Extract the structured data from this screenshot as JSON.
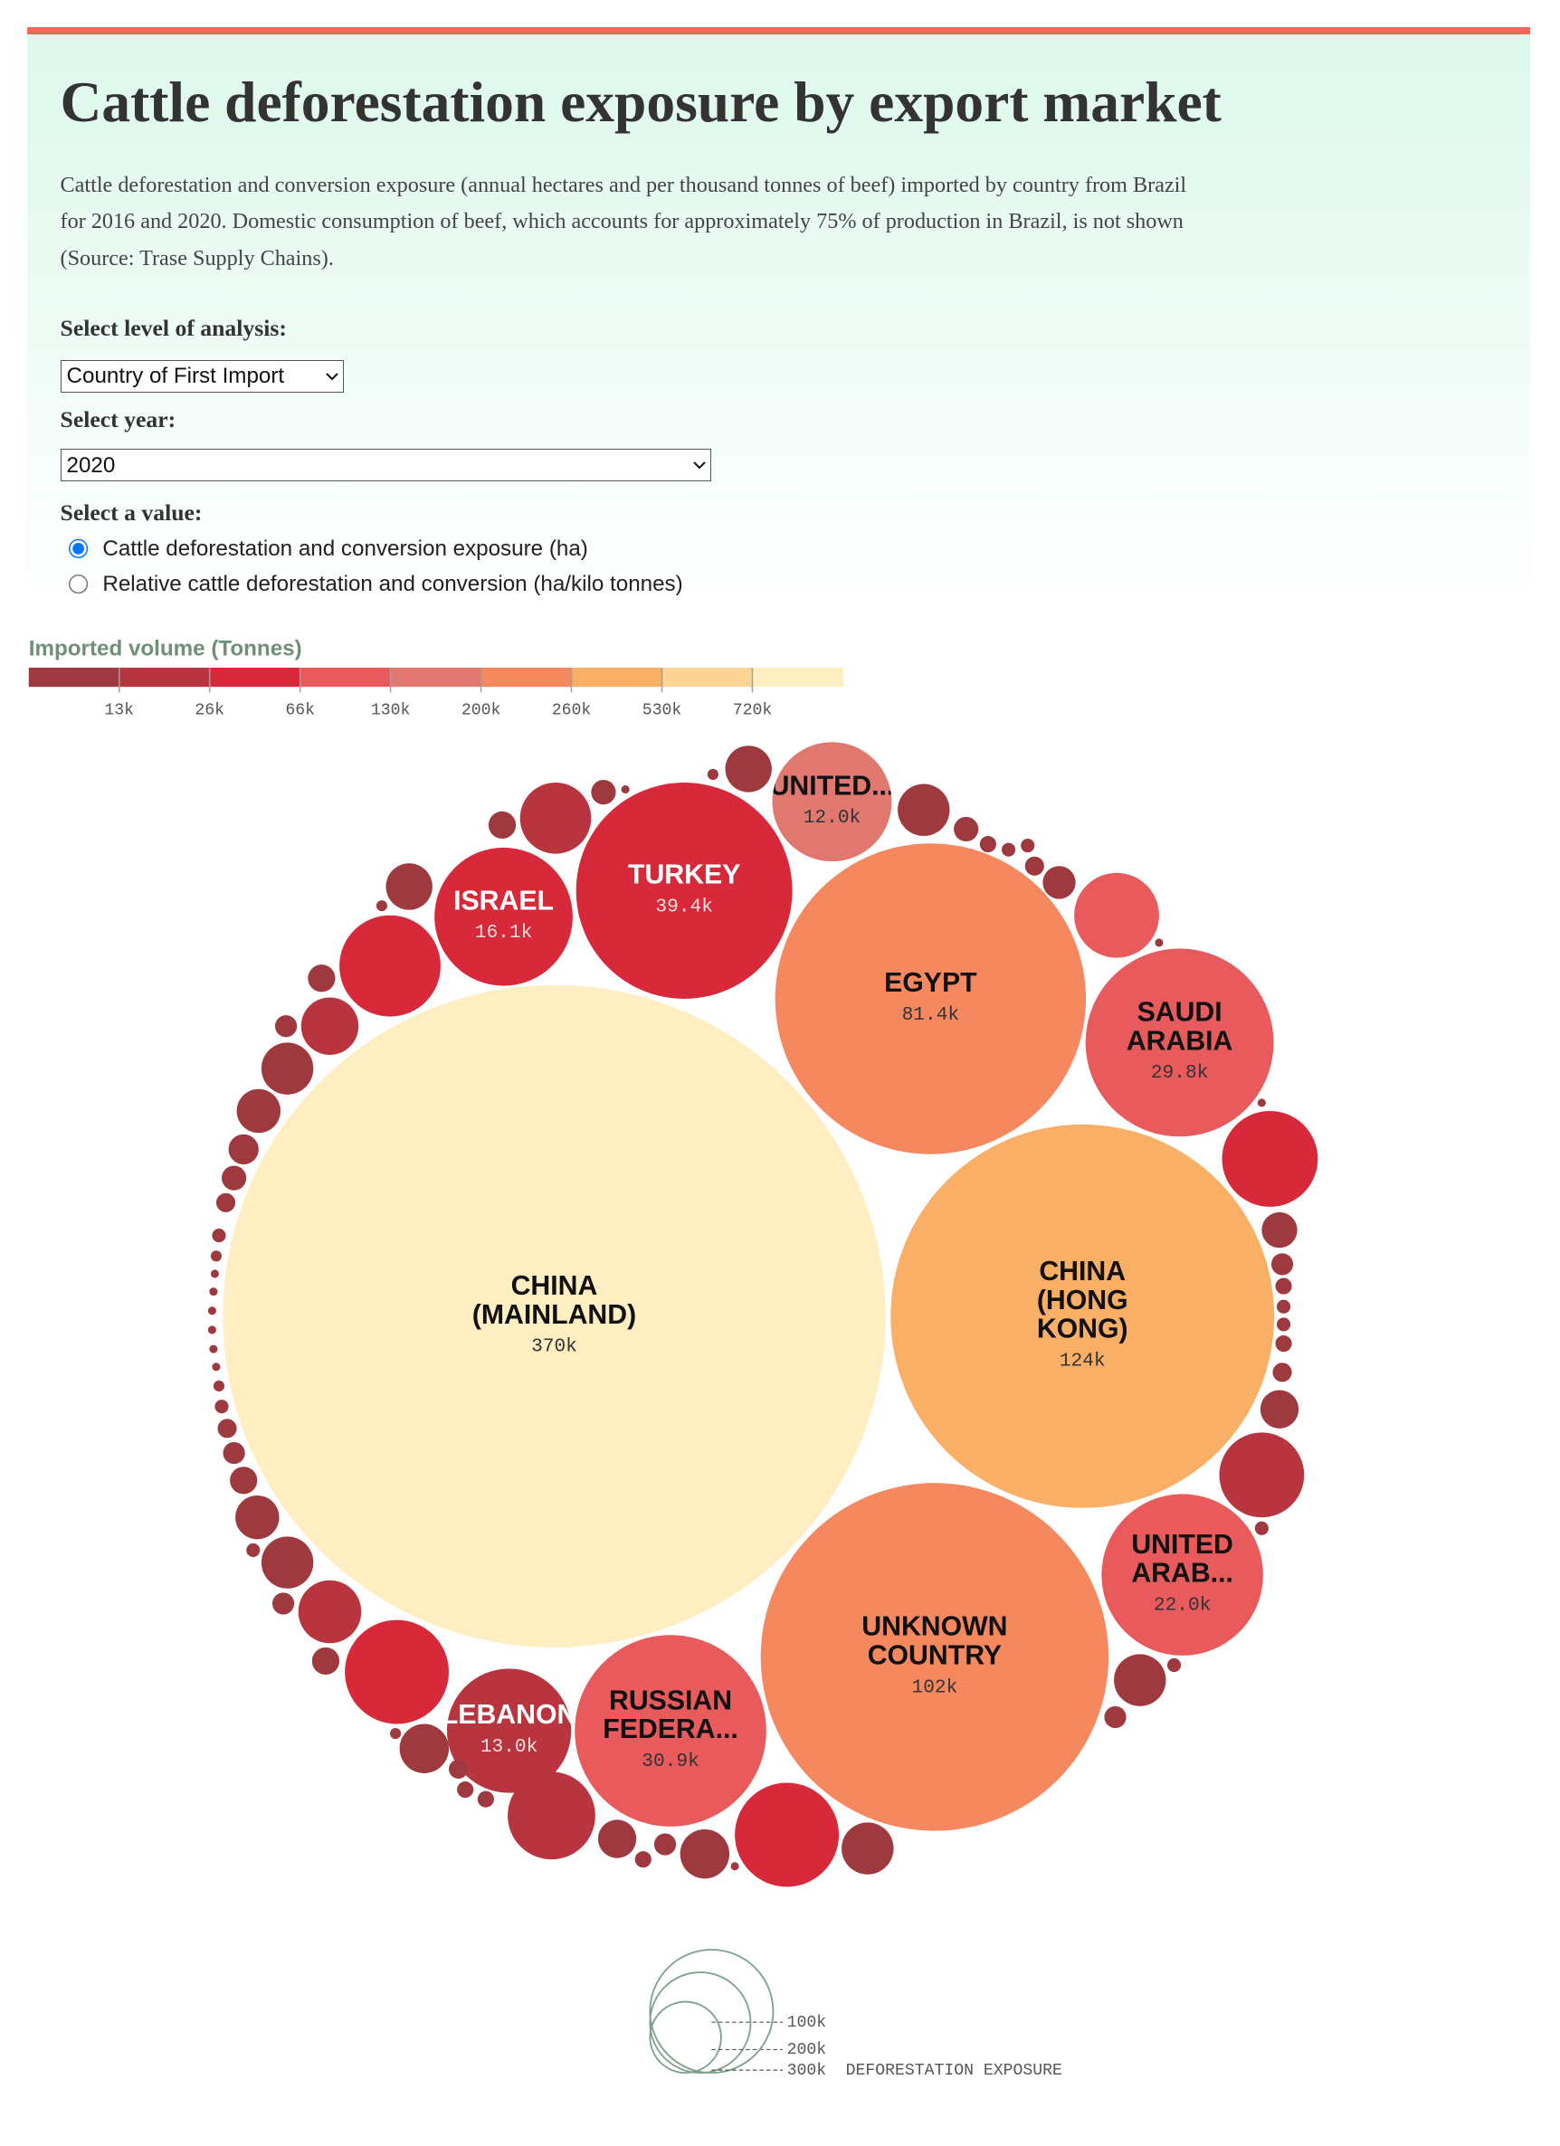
{
  "header": {
    "title": "Cattle deforestation exposure by export market",
    "description": "Cattle deforestation and conversion exposure (annual hectares and per thousand tonnes of beef) imported by country from Brazil for 2016 and 2020. Domestic consumption of beef, which accounts for approximately 75% of production in Brazil, is not shown (Source: Trase Supply Chains)."
  },
  "controls": {
    "level_label": "Select level of analysis:",
    "level_value": "Country of First Import",
    "year_label": "Select year:",
    "year_value": "2020",
    "value_label": "Select a value:",
    "value_options": [
      "Cattle deforestation and conversion exposure (ha)",
      "Relative cattle deforestation and conversion (ha/kilo tonnes)"
    ],
    "selected_option": 0
  },
  "chart_data": {
    "type": "bubble",
    "color_legend": {
      "title": "Imported volume (Tonnes)",
      "colors": [
        "#9e3a3f",
        "#b8343f",
        "#d7293a",
        "#e85a5c",
        "#e07870",
        "#f5885f",
        "#f9b066",
        "#fcd495",
        "#feeec1"
      ],
      "ticks": [
        {
          "value": 13000,
          "label": "13k"
        },
        {
          "value": 26000,
          "label": "26k"
        },
        {
          "value": 66000,
          "label": "66k"
        },
        {
          "value": 130000,
          "label": "130k"
        },
        {
          "value": 200000,
          "label": "200k"
        },
        {
          "value": 260000,
          "label": "260k"
        },
        {
          "value": 530000,
          "label": "530k"
        },
        {
          "value": 720000,
          "label": "720k"
        }
      ]
    },
    "bubbles": [
      {
        "name": [
          "CHINA",
          "(MAINLAND)"
        ],
        "value": 370000,
        "value_label": "370k",
        "color": "#feeec1",
        "text_color": "#111"
      },
      {
        "name": [
          "EGYPT"
        ],
        "value": 81400,
        "value_label": "81.4k",
        "color": "#f5885f",
        "text_color": "#111"
      },
      {
        "name": [
          "CHINA",
          "(HONG",
          "KONG)"
        ],
        "value": 124000,
        "value_label": "124k",
        "color": "#f9b066",
        "text_color": "#111"
      },
      {
        "name": [
          "UNKNOWN",
          "COUNTRY"
        ],
        "value": 102000,
        "value_label": "102k",
        "color": "#f5885f",
        "text_color": "#111"
      },
      {
        "name": [
          "TURKEY"
        ],
        "value": 39400,
        "value_label": "39.4k",
        "color": "#d7293a",
        "text_color": "#fff"
      },
      {
        "name": [
          "SAUDI",
          "ARABIA"
        ],
        "value": 29800,
        "value_label": "29.8k",
        "color": "#e85a5c",
        "text_color": "#111"
      },
      {
        "name": [
          "RUSSIAN",
          "FEDERA..."
        ],
        "value": 30900,
        "value_label": "30.9k",
        "color": "#e85a5c",
        "text_color": "#111"
      },
      {
        "name": [
          "UNITED",
          "ARAB..."
        ],
        "value": 22000,
        "value_label": "22.0k",
        "color": "#e85a5c",
        "text_color": "#111"
      },
      {
        "name": [
          "ISRAEL"
        ],
        "value": 16100,
        "value_label": "16.1k",
        "color": "#d7293a",
        "text_color": "#fff"
      },
      {
        "name": [
          "LEBANON"
        ],
        "value": 13000,
        "value_label": "13.0k",
        "color": "#b8343f",
        "text_color": "#fff"
      },
      {
        "name": [
          "UNITED..."
        ],
        "value": 12000,
        "value_label": "12.0k",
        "color": "#e07870",
        "text_color": "#111"
      }
    ],
    "other_bubbles": [
      {
        "value": 1824,
        "color": "#9e3a3f"
      },
      {
        "value": 101,
        "color": "#9e3a3f"
      },
      {
        "value": 2278,
        "color": "#9e3a3f"
      },
      {
        "value": 511,
        "color": "#9e3a3f"
      },
      {
        "value": 227,
        "color": "#9e3a3f"
      },
      {
        "value": 158,
        "color": "#9e3a3f"
      },
      {
        "value": 158,
        "color": "#9e3a3f"
      },
      {
        "value": 309,
        "color": "#9e3a3f"
      },
      {
        "value": 909,
        "color": "#9e3a3f"
      },
      {
        "value": 6065,
        "color": "#e85a5c"
      },
      {
        "value": 57,
        "color": "#9e3a3f"
      },
      {
        "value": 57,
        "color": "#9e3a3f"
      },
      {
        "value": 7732,
        "color": "#d7293a"
      },
      {
        "value": 1066,
        "color": "#9e3a3f"
      },
      {
        "value": 404,
        "color": "#9e3a3f"
      },
      {
        "value": 227,
        "color": "#9e3a3f"
      },
      {
        "value": 158,
        "color": "#9e3a3f"
      },
      {
        "value": 158,
        "color": "#9e3a3f"
      },
      {
        "value": 227,
        "color": "#9e3a3f"
      },
      {
        "value": 309,
        "color": "#9e3a3f"
      },
      {
        "value": 1237,
        "color": "#9e3a3f"
      },
      {
        "value": 6065,
        "color": "#b8343f"
      },
      {
        "value": 158,
        "color": "#9e3a3f"
      },
      {
        "value": 2278,
        "color": "#9e3a3f"
      },
      {
        "value": 158,
        "color": "#9e3a3f"
      },
      {
        "value": 404,
        "color": "#9e3a3f"
      },
      {
        "value": 2278,
        "color": "#9e3a3f"
      },
      {
        "value": 9113,
        "color": "#d7293a"
      },
      {
        "value": 57,
        "color": "#9e3a3f"
      },
      {
        "value": 2045,
        "color": "#9e3a3f"
      },
      {
        "value": 404,
        "color": "#9e3a3f"
      },
      {
        "value": 227,
        "color": "#9e3a3f"
      },
      {
        "value": 1237,
        "color": "#9e3a3f"
      },
      {
        "value": 6463,
        "color": "#b8343f"
      },
      {
        "value": 227,
        "color": "#9e3a3f"
      },
      {
        "value": 227,
        "color": "#9e3a3f"
      },
      {
        "value": 309,
        "color": "#9e3a3f"
      },
      {
        "value": 2045,
        "color": "#9e3a3f"
      },
      {
        "value": 101,
        "color": "#9e3a3f"
      },
      {
        "value": 9113,
        "color": "#d7293a"
      },
      {
        "value": 631,
        "color": "#9e3a3f"
      },
      {
        "value": 3339,
        "color": "#b8343f"
      },
      {
        "value": 404,
        "color": "#9e3a3f"
      },
      {
        "value": 2278,
        "color": "#9e3a3f"
      },
      {
        "value": 158,
        "color": "#9e3a3f"
      },
      {
        "value": 1616,
        "color": "#9e3a3f"
      },
      {
        "value": 631,
        "color": "#9e3a3f"
      },
      {
        "value": 404,
        "color": "#9e3a3f"
      },
      {
        "value": 309,
        "color": "#9e3a3f"
      },
      {
        "value": 158,
        "color": "#9e3a3f"
      },
      {
        "value": 101,
        "color": "#9e3a3f"
      },
      {
        "value": 57,
        "color": "#9e3a3f"
      },
      {
        "value": 57,
        "color": "#9e3a3f"
      },
      {
        "value": 57,
        "color": "#9e3a3f"
      },
      {
        "value": 57,
        "color": "#9e3a3f"
      },
      {
        "value": 57,
        "color": "#9e3a3f"
      },
      {
        "value": 57,
        "color": "#9e3a3f"
      },
      {
        "value": 101,
        "color": "#9e3a3f"
      },
      {
        "value": 158,
        "color": "#9e3a3f"
      },
      {
        "value": 309,
        "color": "#9e3a3f"
      },
      {
        "value": 511,
        "color": "#9e3a3f"
      },
      {
        "value": 764,
        "color": "#9e3a3f"
      },
      {
        "value": 1616,
        "color": "#9e3a3f"
      },
      {
        "value": 2278,
        "color": "#9e3a3f"
      },
      {
        "value": 2783,
        "color": "#b8343f"
      },
      {
        "value": 404,
        "color": "#9e3a3f"
      },
      {
        "value": 631,
        "color": "#9e3a3f"
      },
      {
        "value": 8640,
        "color": "#d7293a"
      },
      {
        "value": 101,
        "color": "#9e3a3f"
      },
      {
        "value": 1824,
        "color": "#9e3a3f"
      },
      {
        "value": 631,
        "color": "#9e3a3f"
      },
      {
        "value": 4267,
        "color": "#b8343f"
      },
      {
        "value": 511,
        "color": "#9e3a3f"
      },
      {
        "value": 57,
        "color": "#9e3a3f"
      }
    ],
    "size_legend": {
      "title": "DEFORESTATION EXPOSURE",
      "color": "#7fa08a",
      "ticks": [
        {
          "value": 100000,
          "label": "100k"
        },
        {
          "value": 200000,
          "label": "200k"
        },
        {
          "value": 300000,
          "label": "300k"
        }
      ]
    }
  }
}
